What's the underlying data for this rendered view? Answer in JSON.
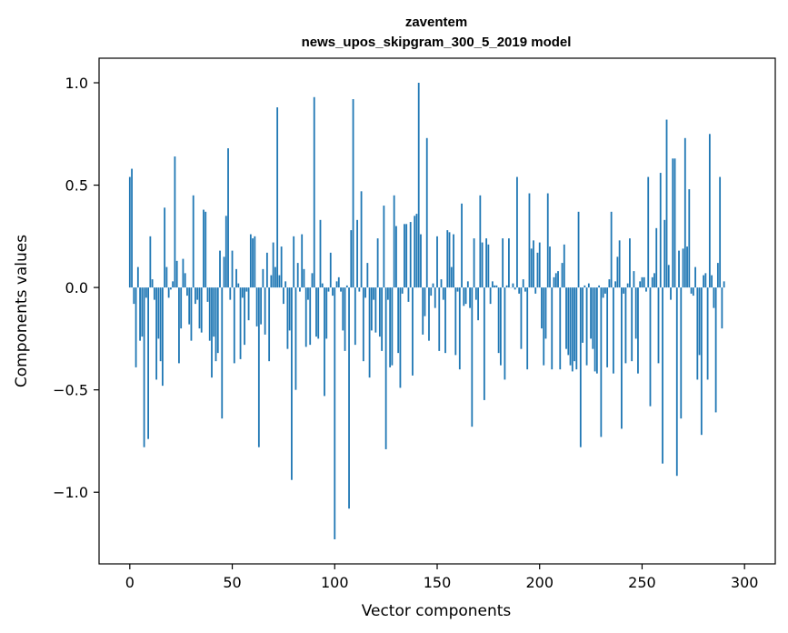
{
  "chart_data": {
    "type": "bar",
    "title_line1": "zaventem",
    "title_line2": "news_upos_skipgram_300_5_2019 model",
    "xlabel": "Vector components",
    "ylabel": "Components values",
    "xlim": [
      -15,
      315
    ],
    "ylim": [
      -1.35,
      1.12
    ],
    "xticks": [
      0,
      50,
      100,
      150,
      200,
      250,
      300
    ],
    "yticks": [
      1.0,
      0.5,
      0.0,
      -0.5,
      -1.0
    ],
    "ytick_labels": [
      "1.0",
      "0.5",
      "0.0",
      "−0.5",
      "−1.0"
    ],
    "bar_color": "#1f77b4",
    "grid": false,
    "values": [
      0.54,
      0.58,
      -0.08,
      -0.39,
      0.1,
      -0.26,
      -0.24,
      -0.78,
      -0.05,
      -0.74,
      0.25,
      0.04,
      -0.06,
      -0.45,
      -0.25,
      -0.36,
      -0.48,
      0.39,
      0.1,
      -0.05,
      -0.01,
      0.03,
      0.64,
      0.13,
      -0.37,
      -0.2,
      0.14,
      0.07,
      -0.04,
      -0.18,
      -0.26,
      0.45,
      -0.08,
      -0.06,
      -0.2,
      -0.22,
      0.38,
      0.37,
      -0.07,
      -0.26,
      -0.44,
      -0.24,
      -0.36,
      -0.32,
      0.18,
      -0.64,
      0.15,
      0.35,
      0.68,
      -0.06,
      0.18,
      -0.37,
      0.09,
      0.02,
      -0.35,
      -0.05,
      -0.28,
      -0.02,
      -0.16,
      0.26,
      0.24,
      0.25,
      -0.19,
      -0.78,
      -0.18,
      0.09,
      -0.23,
      0.17,
      -0.36,
      0.06,
      0.22,
      0.1,
      0.88,
      0.06,
      0.2,
      -0.08,
      0.03,
      -0.3,
      -0.21,
      -0.94,
      0.25,
      -0.5,
      0.12,
      -0.02,
      0.26,
      0.09,
      -0.29,
      -0.06,
      -0.28,
      0.07,
      0.93,
      -0.24,
      -0.25,
      0.33,
      0.02,
      -0.53,
      -0.25,
      -0.02,
      0.17,
      -0.04,
      -1.23,
      0.03,
      0.05,
      -0.02,
      -0.21,
      -0.31,
      0.01,
      -1.08,
      0.28,
      0.92,
      -0.28,
      0.33,
      -0.02,
      0.47,
      -0.36,
      -0.05,
      0.12,
      -0.44,
      -0.21,
      -0.06,
      -0.22,
      0.24,
      -0.24,
      -0.31,
      0.4,
      -0.79,
      -0.06,
      -0.39,
      -0.38,
      0.45,
      0.3,
      -0.32,
      -0.49,
      -0.03,
      0.31,
      0.31,
      -0.07,
      0.32,
      -0.43,
      0.35,
      0.36,
      1.0,
      0.26,
      -0.23,
      -0.14,
      0.73,
      -0.26,
      -0.04,
      0.02,
      -0.1,
      0.25,
      -0.31,
      0.04,
      -0.06,
      -0.32,
      0.28,
      0.27,
      0.1,
      0.26,
      -0.33,
      -0.02,
      -0.4,
      0.41,
      -0.09,
      -0.08,
      0.03,
      -0.1,
      -0.68,
      0.24,
      -0.06,
      -0.16,
      0.45,
      0.22,
      -0.55,
      0.24,
      0.21,
      -0.08,
      0.03,
      0.01,
      0.01,
      -0.32,
      -0.38,
      0.24,
      -0.45,
      0.01,
      0.24,
      0.0,
      0.02,
      -0.01,
      0.54,
      -0.03,
      -0.3,
      0.04,
      -0.02,
      -0.4,
      0.46,
      0.19,
      0.23,
      -0.03,
      0.17,
      0.22,
      -0.2,
      -0.38,
      -0.25,
      0.46,
      0.2,
      -0.4,
      0.05,
      0.07,
      0.08,
      -0.4,
      0.12,
      0.21,
      -0.3,
      -0.33,
      -0.38,
      -0.41,
      -0.36,
      -0.4,
      0.37,
      -0.78,
      -0.27,
      0.01,
      -0.38,
      0.02,
      -0.25,
      -0.3,
      -0.41,
      -0.42,
      0.01,
      -0.73,
      -0.05,
      -0.03,
      -0.39,
      0.04,
      0.37,
      -0.42,
      0.03,
      0.15,
      0.23,
      -0.69,
      -0.03,
      -0.37,
      0.02,
      0.24,
      -0.36,
      0.08,
      -0.25,
      -0.42,
      0.03,
      0.05,
      0.05,
      -0.02,
      0.54,
      -0.58,
      0.05,
      0.07,
      0.29,
      -0.37,
      0.56,
      -0.86,
      0.33,
      0.82,
      0.11,
      -0.06,
      0.63,
      0.63,
      -0.92,
      0.18,
      -0.64,
      0.19,
      0.73,
      0.2,
      0.48,
      -0.03,
      -0.04,
      0.1,
      -0.45,
      -0.33,
      -0.72,
      0.06,
      0.07,
      -0.45,
      0.75,
      0.06,
      -0.1,
      -0.61,
      0.12,
      0.54,
      -0.2,
      0.03
    ]
  }
}
